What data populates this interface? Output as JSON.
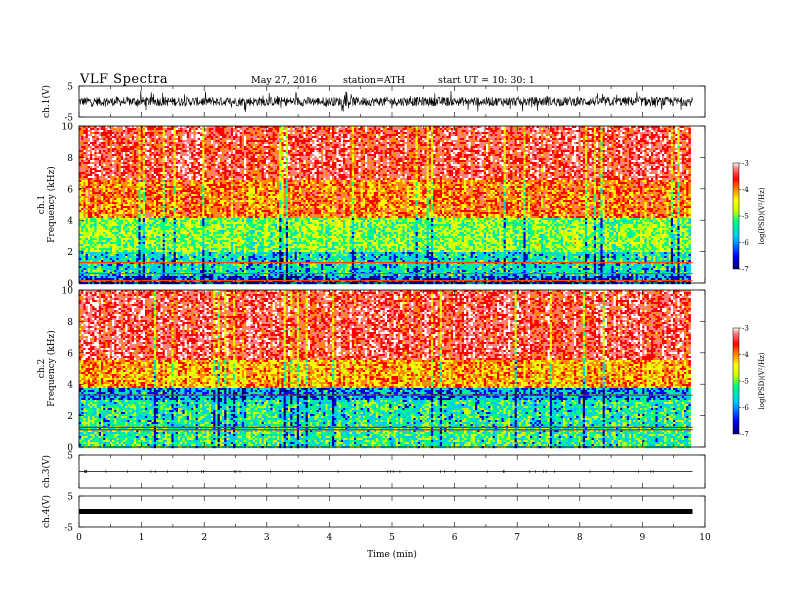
{
  "header": {
    "title": "VLF  Spectra",
    "date": "May 27, 2016",
    "station": "station=ATH",
    "start": "start  UT  =    10: 30: 1"
  },
  "chart_data": [
    {
      "type": "line",
      "panel": "ch1-waveform",
      "ylabel": "ch.1(V)",
      "ylim": [
        -5,
        5
      ],
      "yticks": [
        "5",
        "-5"
      ],
      "description_values": {
        "baseline": 0,
        "typical_amplitude": 1.5,
        "spike_amplitude": 3.5
      }
    },
    {
      "type": "heatmap",
      "panel": "ch1-spectrogram",
      "ylabel_line1": "ch.1",
      "ylabel_line2": "Frequency  (kHz)",
      "ylim": [
        0,
        10
      ],
      "yticks": [
        "0",
        "2",
        "4",
        "6",
        "8",
        "10"
      ],
      "colorbar": {
        "label": "log(PSD)(V²/Hz)",
        "range": [
          -7,
          -3
        ],
        "ticks": [
          "-3",
          "-4",
          "-5",
          "-6",
          "-7"
        ]
      },
      "band_levels": [
        {
          "f_from": 0,
          "f_to": 0.5,
          "logpsd": -6.3
        },
        {
          "f_from": 0.5,
          "f_to": 2,
          "logpsd": -5.8
        },
        {
          "f_from": 2,
          "f_to": 4.2,
          "logpsd": -5.3
        },
        {
          "f_from": 4.2,
          "f_to": 6.5,
          "logpsd": -4.3
        },
        {
          "f_from": 6.5,
          "f_to": 10,
          "logpsd": -3.8
        }
      ]
    },
    {
      "type": "heatmap",
      "panel": "ch2-spectrogram",
      "ylabel_line1": "ch.2",
      "ylabel_line2": "Frequency  (kHz)",
      "ylim": [
        0,
        10
      ],
      "yticks": [
        "0",
        "2",
        "4",
        "6",
        "8",
        "10"
      ],
      "colorbar": {
        "label": "log(PSD)(V²/Hz)",
        "range": [
          -7,
          -3
        ],
        "ticks": [
          "-3",
          "-4",
          "-5",
          "-6",
          "-7"
        ]
      },
      "band_levels": [
        {
          "f_from": 0,
          "f_to": 1.2,
          "logpsd": -5.6
        },
        {
          "f_from": 1.2,
          "f_to": 3,
          "logpsd": -5.7
        },
        {
          "f_from": 3,
          "f_to": 3.8,
          "logpsd": -6.1
        },
        {
          "f_from": 3.8,
          "f_to": 5.5,
          "logpsd": -4.5
        },
        {
          "f_from": 5.5,
          "f_to": 10,
          "logpsd": -3.8
        }
      ]
    },
    {
      "type": "line",
      "panel": "ch3-waveform",
      "ylabel": "ch.3(V)",
      "ylim": [
        -5,
        5
      ],
      "yticks": [
        "5"
      ],
      "description_values": {
        "baseline": 0
      }
    },
    {
      "type": "line",
      "panel": "ch4-waveform",
      "ylabel": "ch.4(V)",
      "ylim": [
        -5,
        5
      ],
      "yticks": [
        "5",
        "-5"
      ],
      "description_values": {
        "baseline": 0
      }
    }
  ],
  "xaxis": {
    "xlabel": "Time  (min)",
    "xlim": [
      0,
      10
    ],
    "ticks": [
      "0",
      "1",
      "2",
      "3",
      "4",
      "5",
      "6",
      "7",
      "8",
      "9",
      "10"
    ],
    "data_end": 9.8
  },
  "colors": {
    "heat": [
      "#000066",
      "#0000ff",
      "#00c8ff",
      "#00ff80",
      "#c8ff00",
      "#ffff00",
      "#ff8800",
      "#ff0000",
      "#ff8080",
      "#ffffff"
    ]
  }
}
